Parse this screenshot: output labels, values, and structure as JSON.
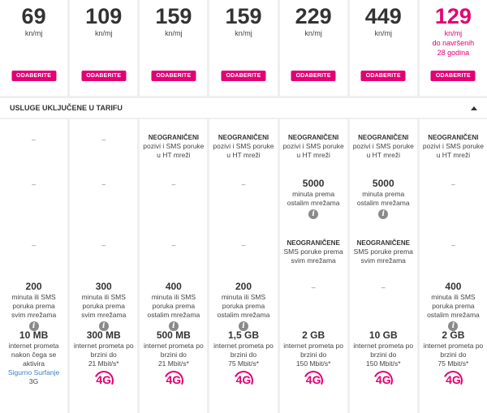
{
  "plans": [
    {
      "price": "69",
      "unit": "kn/mj",
      "button": "ODABERITE"
    },
    {
      "price": "109",
      "unit": "kn/mj",
      "button": "ODABERITE"
    },
    {
      "price": "159",
      "unit": "kn/mj",
      "button": "ODABERITE"
    },
    {
      "price": "159",
      "unit": "kn/mj",
      "button": "ODABERITE"
    },
    {
      "price": "229",
      "unit": "kn/mj",
      "button": "ODABERITE"
    },
    {
      "price": "449",
      "unit": "kn/mj",
      "button": "ODABERITE"
    },
    {
      "price": "129",
      "unit": "kn/mj",
      "note": "do navršenih 28 godina",
      "button": "ODABERITE",
      "highlight": true
    }
  ],
  "section": {
    "title": "USLUGE UKLJUČENE U TARIFU",
    "icon": "caret-up-icon"
  },
  "accent": "#e20074",
  "columns": [
    {
      "rows": [
        {
          "dash": "–"
        },
        {
          "dash": "–"
        },
        {
          "dash": "–"
        },
        {
          "big": "200",
          "text": "minuta ili SMS poruka prema",
          "bold_text": "svim mrežama",
          "info": true
        },
        {
          "big": "10 MB",
          "text": "internet prometa nakon čega se aktivira",
          "link": "Sigurno Surfanje",
          "after": "3G"
        }
      ]
    },
    {
      "rows": [
        {
          "dash": "–"
        },
        {
          "dash": "–"
        },
        {
          "dash": "–"
        },
        {
          "big": "300",
          "text": "minuta ili SMS poruka prema",
          "bold_text": "svim mrežama",
          "info": true
        },
        {
          "big": "300 MB",
          "text": "internet prometa po brzini do",
          "bold_text": "21 Mbit/s*",
          "g4": "4G"
        }
      ]
    },
    {
      "rows": [
        {
          "h": "NEOGRANIČENI",
          "text": "pozivi i SMS poruke u HT mreži"
        },
        {
          "dash": "–"
        },
        {
          "dash": "–"
        },
        {
          "big": "400",
          "text": "minuta ili SMS poruka prema",
          "bold_text": "ostalim mrežama",
          "info": true
        },
        {
          "big": "500 MB",
          "text": "internet prometa po brzini do",
          "bold_text": "21 Mbit/s*",
          "g4": "4G"
        }
      ]
    },
    {
      "rows": [
        {
          "h": "NEOGRANIČENI",
          "text": "pozivi i SMS poruke u HT mreži"
        },
        {
          "dash": "–"
        },
        {
          "dash": "–"
        },
        {
          "big": "200",
          "text": "minuta ili SMS poruka prema",
          "bold_text": "ostalim mrežama",
          "info": true
        },
        {
          "big": "1,5 GB",
          "text": "internet prometa po brzini do",
          "bold_text": "75 Mbit/s*",
          "g4": "4G"
        }
      ]
    },
    {
      "rows": [
        {
          "h": "NEOGRANIČENI",
          "text": "pozivi i SMS poruke u HT mreži"
        },
        {
          "big": "5000",
          "text": "minuta prema ostalim mrežama",
          "info": true
        },
        {
          "h": "NEOGRANIČENE",
          "text": "SMS poruke prema svim mrežama"
        },
        {
          "dash": "–"
        },
        {
          "big": "2 GB",
          "text": "internet prometa po brzini do",
          "bold_text": "150 Mbit/s*",
          "g4": "4G"
        }
      ]
    },
    {
      "rows": [
        {
          "h": "NEOGRANIČENI",
          "text": "pozivi i SMS poruke u HT mreži"
        },
        {
          "big": "5000",
          "text": "minuta prema ostalim mrežama",
          "info": true
        },
        {
          "h": "NEOGRANIČENE",
          "text": "SMS poruke prema svim mrežama"
        },
        {
          "dash": "–"
        },
        {
          "big": "10 GB",
          "text": "internet prometa po brzini do",
          "bold_text": "150 Mbit/s*",
          "g4": "4G"
        }
      ]
    },
    {
      "rows": [
        {
          "h": "NEOGRANIČENI",
          "text": "pozivi i SMS poruke u HT mreži"
        },
        {
          "dash": "–"
        },
        {
          "dash": "–"
        },
        {
          "big": "400",
          "text": "minuta ili SMS poruka prema",
          "bold_text": "ostalim mrežama",
          "info": true
        },
        {
          "big": "2 GB",
          "text": "internet prometa po brzini do",
          "bold_text": "75 Mbit/s*",
          "g4": "4G"
        }
      ]
    }
  ]
}
